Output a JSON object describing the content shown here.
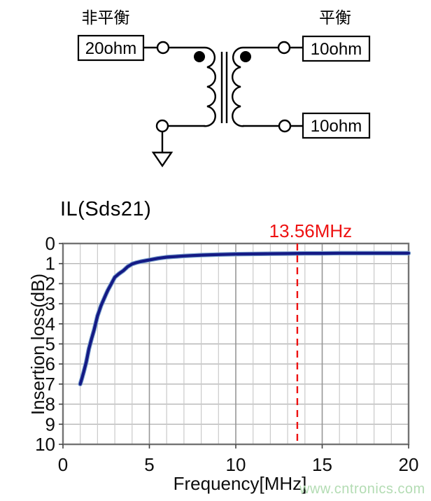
{
  "circuit": {
    "unbalanced_label": "非平衡",
    "balanced_label": "平衡",
    "source_impedance": "20ohm",
    "load_impedance_top": "10ohm",
    "load_impedance_bottom": "10ohm"
  },
  "chart_data": {
    "type": "line",
    "title": "IL(Sds21)",
    "xlabel": "Frequency[MHz]",
    "ylabel": "Insertion loss(dB)",
    "xlim": [
      0,
      20
    ],
    "ylim": [
      0,
      10
    ],
    "y_axis_inverted_loss": true,
    "grid": true,
    "x_grid_step": 1,
    "y_grid_step": 1,
    "x_major_ticks": [
      0,
      5,
      10,
      15,
      20
    ],
    "y_major_ticks": [
      0,
      1,
      2,
      3,
      4,
      5,
      6,
      7,
      8,
      9,
      10
    ],
    "annotation": {
      "label": "13.56MHz",
      "x": 13.56,
      "color": "#ee1111"
    },
    "series": [
      {
        "name": "IL(Sds21)",
        "color": "#141a85",
        "points": [
          [
            1,
            7.0
          ],
          [
            1.1,
            6.7
          ],
          [
            1.2,
            6.4
          ],
          [
            1.35,
            5.9
          ],
          [
            1.5,
            5.25
          ],
          [
            1.65,
            4.75
          ],
          [
            1.8,
            4.3
          ],
          [
            2,
            3.6
          ],
          [
            2.2,
            3.1
          ],
          [
            2.4,
            2.7
          ],
          [
            2.5,
            2.5
          ],
          [
            2.6,
            2.32
          ],
          [
            2.8,
            2.0
          ],
          [
            3,
            1.68
          ],
          [
            3.25,
            1.5
          ],
          [
            3.5,
            1.35
          ],
          [
            3.75,
            1.15
          ],
          [
            4,
            1.02
          ],
          [
            4.25,
            0.95
          ],
          [
            4.5,
            0.9
          ],
          [
            5,
            0.82
          ],
          [
            5.5,
            0.74
          ],
          [
            6,
            0.68
          ],
          [
            6.5,
            0.65
          ],
          [
            7,
            0.62
          ],
          [
            7.5,
            0.6
          ],
          [
            8,
            0.58
          ],
          [
            9,
            0.55
          ],
          [
            10,
            0.53
          ],
          [
            11,
            0.52
          ],
          [
            12,
            0.51
          ],
          [
            13,
            0.5
          ],
          [
            14,
            0.49
          ],
          [
            15,
            0.49
          ],
          [
            16,
            0.48
          ],
          [
            17,
            0.48
          ],
          [
            18,
            0.48
          ],
          [
            19,
            0.48
          ],
          [
            20,
            0.48
          ]
        ]
      }
    ]
  },
  "watermark": "www.cntronics.com"
}
